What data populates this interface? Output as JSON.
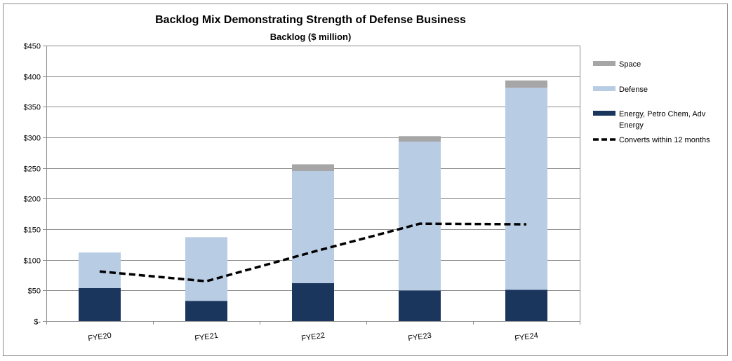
{
  "chart_data": {
    "type": "bar",
    "stacked": true,
    "title": "Backlog Mix Demonstrating Strength of Defense Business",
    "subtitle": "Backlog ($ million)",
    "xlabel": "",
    "ylabel": "",
    "ylim": [
      0,
      450
    ],
    "y_ticks": [
      0,
      50,
      100,
      150,
      200,
      250,
      300,
      350,
      400,
      450
    ],
    "y_tick_labels": [
      "$-",
      "$50",
      "$100",
      "$150",
      "$200",
      "$250",
      "$300",
      "$350",
      "$400",
      "$450"
    ],
    "grid": true,
    "categories": [
      "FYE20",
      "FYE21",
      "FYE22",
      "FYE23",
      "FYE24"
    ],
    "series": [
      {
        "name": "Energy, Petro Chem, Adv Energy",
        "legend_lines": [
          "Energy, Petro Chem, Adv",
          "Energy"
        ],
        "color": "#1b365d",
        "values": [
          54,
          33,
          62,
          50,
          51
        ]
      },
      {
        "name": "Defense",
        "legend_lines": [
          "Defense"
        ],
        "color": "#b8cce4",
        "values": [
          58,
          104,
          183,
          243,
          330
        ]
      },
      {
        "name": "Space",
        "legend_lines": [
          "Space"
        ],
        "color": "#a6a6a6",
        "values": [
          0,
          0,
          11,
          9,
          12
        ]
      }
    ],
    "line_series": {
      "name": "Converts within 12 months",
      "legend_lines": [
        "Converts within 12 months"
      ],
      "color": "#000000",
      "style": "dashed",
      "values": [
        81,
        65,
        113,
        159,
        158
      ]
    },
    "legend_position": "right"
  }
}
